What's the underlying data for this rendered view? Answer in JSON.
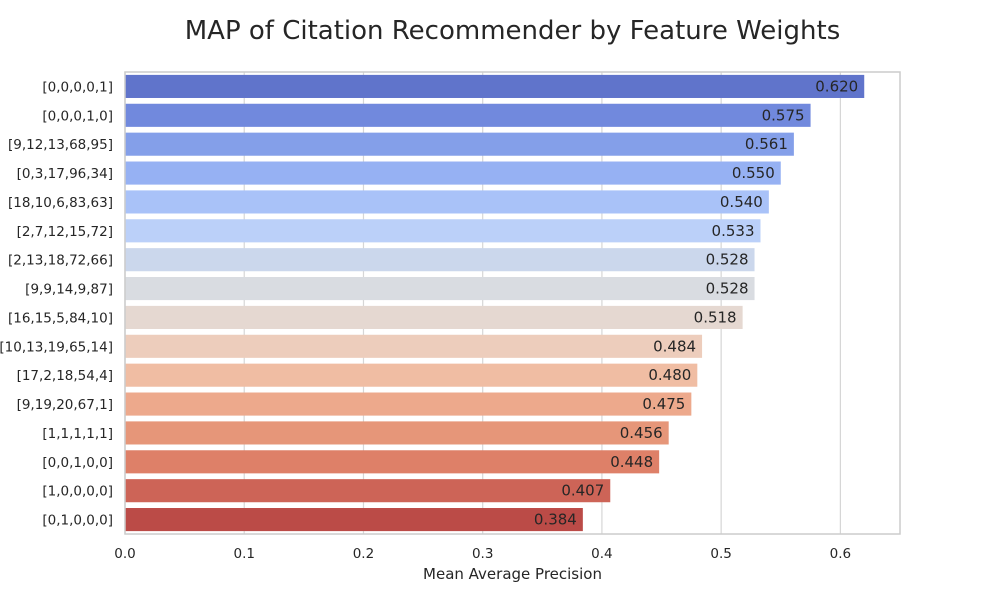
{
  "chart_data": {
    "type": "bar",
    "orientation": "horizontal",
    "title": "MAP of Citation Recommender by Feature Weights",
    "xlabel": "Mean Average Precision",
    "ylabel": "",
    "xlim": [
      0,
      0.65
    ],
    "xticks": [
      "0.0",
      "0.1",
      "0.2",
      "0.3",
      "0.4",
      "0.5",
      "0.6"
    ],
    "grid": "vertical",
    "categories": [
      "[0,0,0,0,1]",
      "[0,0,0,1,0]",
      "[9,12,13,68,95]",
      "[0,3,17,96,34]",
      "[18,10,6,83,63]",
      "[2,7,12,15,72]",
      "[2,13,18,72,66]",
      "[9,9,14,9,87]",
      "[16,15,5,84,10]",
      "[10,13,19,65,14]",
      "[17,2,18,54,4]",
      "[9,19,20,67,1]",
      "[1,1,1,1,1]",
      "[0,0,1,0,0]",
      "[1,0,0,0,0]",
      "[0,1,0,0,0]"
    ],
    "values": [
      0.62,
      0.575,
      0.561,
      0.55,
      0.54,
      0.533,
      0.528,
      0.528,
      0.518,
      0.484,
      0.48,
      0.475,
      0.456,
      0.448,
      0.407,
      0.384
    ],
    "value_labels": [
      "0.620",
      "0.575",
      "0.561",
      "0.550",
      "0.540",
      "0.533",
      "0.528",
      "0.528",
      "0.518",
      "0.484",
      "0.480",
      "0.475",
      "0.456",
      "0.448",
      "0.407",
      "0.384"
    ],
    "colors": [
      "#6074cb",
      "#7189dd",
      "#849fe9",
      "#96b1f3",
      "#a9c2f8",
      "#bbd0f9",
      "#cbd7ec",
      "#d9dce1",
      "#e5d8d1",
      "#edcdbc",
      "#f0bda3",
      "#eda98c",
      "#e69679",
      "#de8068",
      "#cd6457",
      "#bb4b47"
    ],
    "palette_name": "coolwarm"
  }
}
